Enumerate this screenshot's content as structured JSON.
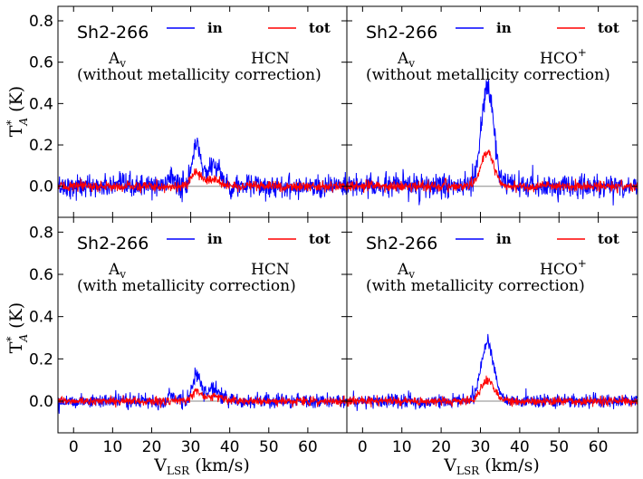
{
  "figure": {
    "xlabel_main": "V",
    "xlabel_sub": "LSR",
    "xlabel_unit": "(km/s)",
    "ylabel_main": "T",
    "ylabel_sup": "*",
    "ylabel_sub": "A",
    "ylabel_unit": "(K)"
  },
  "chart_data": [
    {
      "type": "line",
      "panel": "top-left",
      "source": "Sh2-266",
      "molecule": "HCN",
      "molecule_sup": "",
      "extinction_label": "A",
      "extinction_sub": "v",
      "correction_note": "(without metallicity correction)",
      "xlim": [
        -4,
        70
      ],
      "ylim": [
        -0.15,
        0.87
      ],
      "xticks": [
        0,
        10,
        20,
        30,
        40,
        50,
        60
      ],
      "yticks": [
        0.0,
        0.2,
        0.4,
        0.6,
        0.8
      ],
      "ytick_labels": [
        "0.0",
        "0.2",
        "0.4",
        "0.6",
        "0.8"
      ],
      "legend_position": "top",
      "series": [
        {
          "name": "in",
          "color": "#0000ff",
          "noise_rms": 0.028,
          "components": [
            {
              "center": 31.5,
              "amplitude": 0.21,
              "width": 1.0
            },
            {
              "center": 35.8,
              "amplitude": 0.11,
              "width": 1.6
            },
            {
              "center": 25.0,
              "amplitude": 0.06,
              "width": 0.7
            }
          ]
        },
        {
          "name": "tot",
          "color": "#ff0000",
          "noise_rms": 0.012,
          "components": [
            {
              "center": 31.5,
              "amplitude": 0.065,
              "width": 1.2
            },
            {
              "center": 35.8,
              "amplitude": 0.035,
              "width": 1.7
            }
          ]
        }
      ]
    },
    {
      "type": "line",
      "panel": "top-right",
      "source": "Sh2-266",
      "molecule": "HCO",
      "molecule_sup": "+",
      "extinction_label": "A",
      "extinction_sub": "v",
      "correction_note": "(without metallicity correction)",
      "xlim": [
        -4,
        70
      ],
      "ylim": [
        -0.15,
        0.87
      ],
      "xticks": [
        0,
        10,
        20,
        30,
        40,
        50,
        60
      ],
      "yticks": [
        0.0,
        0.2,
        0.4,
        0.6,
        0.8
      ],
      "ytick_labels": [],
      "legend_position": "top",
      "series": [
        {
          "name": "in",
          "color": "#0000ff",
          "noise_rms": 0.028,
          "components": [
            {
              "center": 31.8,
              "amplitude": 0.47,
              "width": 1.6
            }
          ]
        },
        {
          "name": "tot",
          "color": "#ff0000",
          "noise_rms": 0.012,
          "components": [
            {
              "center": 31.8,
              "amplitude": 0.16,
              "width": 1.7
            }
          ]
        }
      ]
    },
    {
      "type": "line",
      "panel": "bottom-left",
      "source": "Sh2-266",
      "molecule": "HCN",
      "molecule_sup": "",
      "extinction_label": "A",
      "extinction_sub": "v",
      "correction_note": "(with metallicity correction)",
      "xlim": [
        -4,
        70
      ],
      "ylim": [
        -0.15,
        0.87
      ],
      "xticks": [
        0,
        10,
        20,
        30,
        40,
        50,
        60
      ],
      "yticks": [
        0.0,
        0.2,
        0.4,
        0.6,
        0.8
      ],
      "ytick_labels": [
        "0.0",
        "0.2",
        "0.4",
        "0.6",
        "0.8"
      ],
      "legend_position": "top",
      "series": [
        {
          "name": "in",
          "color": "#0000ff",
          "noise_rms": 0.017,
          "components": [
            {
              "center": 31.5,
              "amplitude": 0.12,
              "width": 1.0
            },
            {
              "center": 35.8,
              "amplitude": 0.065,
              "width": 1.6
            },
            {
              "center": 25.0,
              "amplitude": 0.035,
              "width": 0.7
            }
          ]
        },
        {
          "name": "tot",
          "color": "#ff0000",
          "noise_rms": 0.01,
          "components": [
            {
              "center": 31.5,
              "amplitude": 0.045,
              "width": 1.3
            },
            {
              "center": 35.8,
              "amplitude": 0.025,
              "width": 1.8
            }
          ]
        }
      ]
    },
    {
      "type": "line",
      "panel": "bottom-right",
      "source": "Sh2-266",
      "molecule": "HCO",
      "molecule_sup": "+",
      "extinction_label": "A",
      "extinction_sub": "v",
      "correction_note": "(with metallicity correction)",
      "xlim": [
        -4,
        70
      ],
      "ylim": [
        -0.15,
        0.87
      ],
      "xticks": [
        0,
        10,
        20,
        30,
        40,
        50,
        60
      ],
      "yticks": [
        0.0,
        0.2,
        0.4,
        0.6,
        0.8
      ],
      "ytick_labels": [],
      "legend_position": "top",
      "series": [
        {
          "name": "in",
          "color": "#0000ff",
          "noise_rms": 0.017,
          "components": [
            {
              "center": 31.8,
              "amplitude": 0.28,
              "width": 1.6
            }
          ]
        },
        {
          "name": "tot",
          "color": "#ff0000",
          "noise_rms": 0.01,
          "components": [
            {
              "center": 31.8,
              "amplitude": 0.1,
              "width": 1.7
            }
          ]
        }
      ]
    }
  ]
}
